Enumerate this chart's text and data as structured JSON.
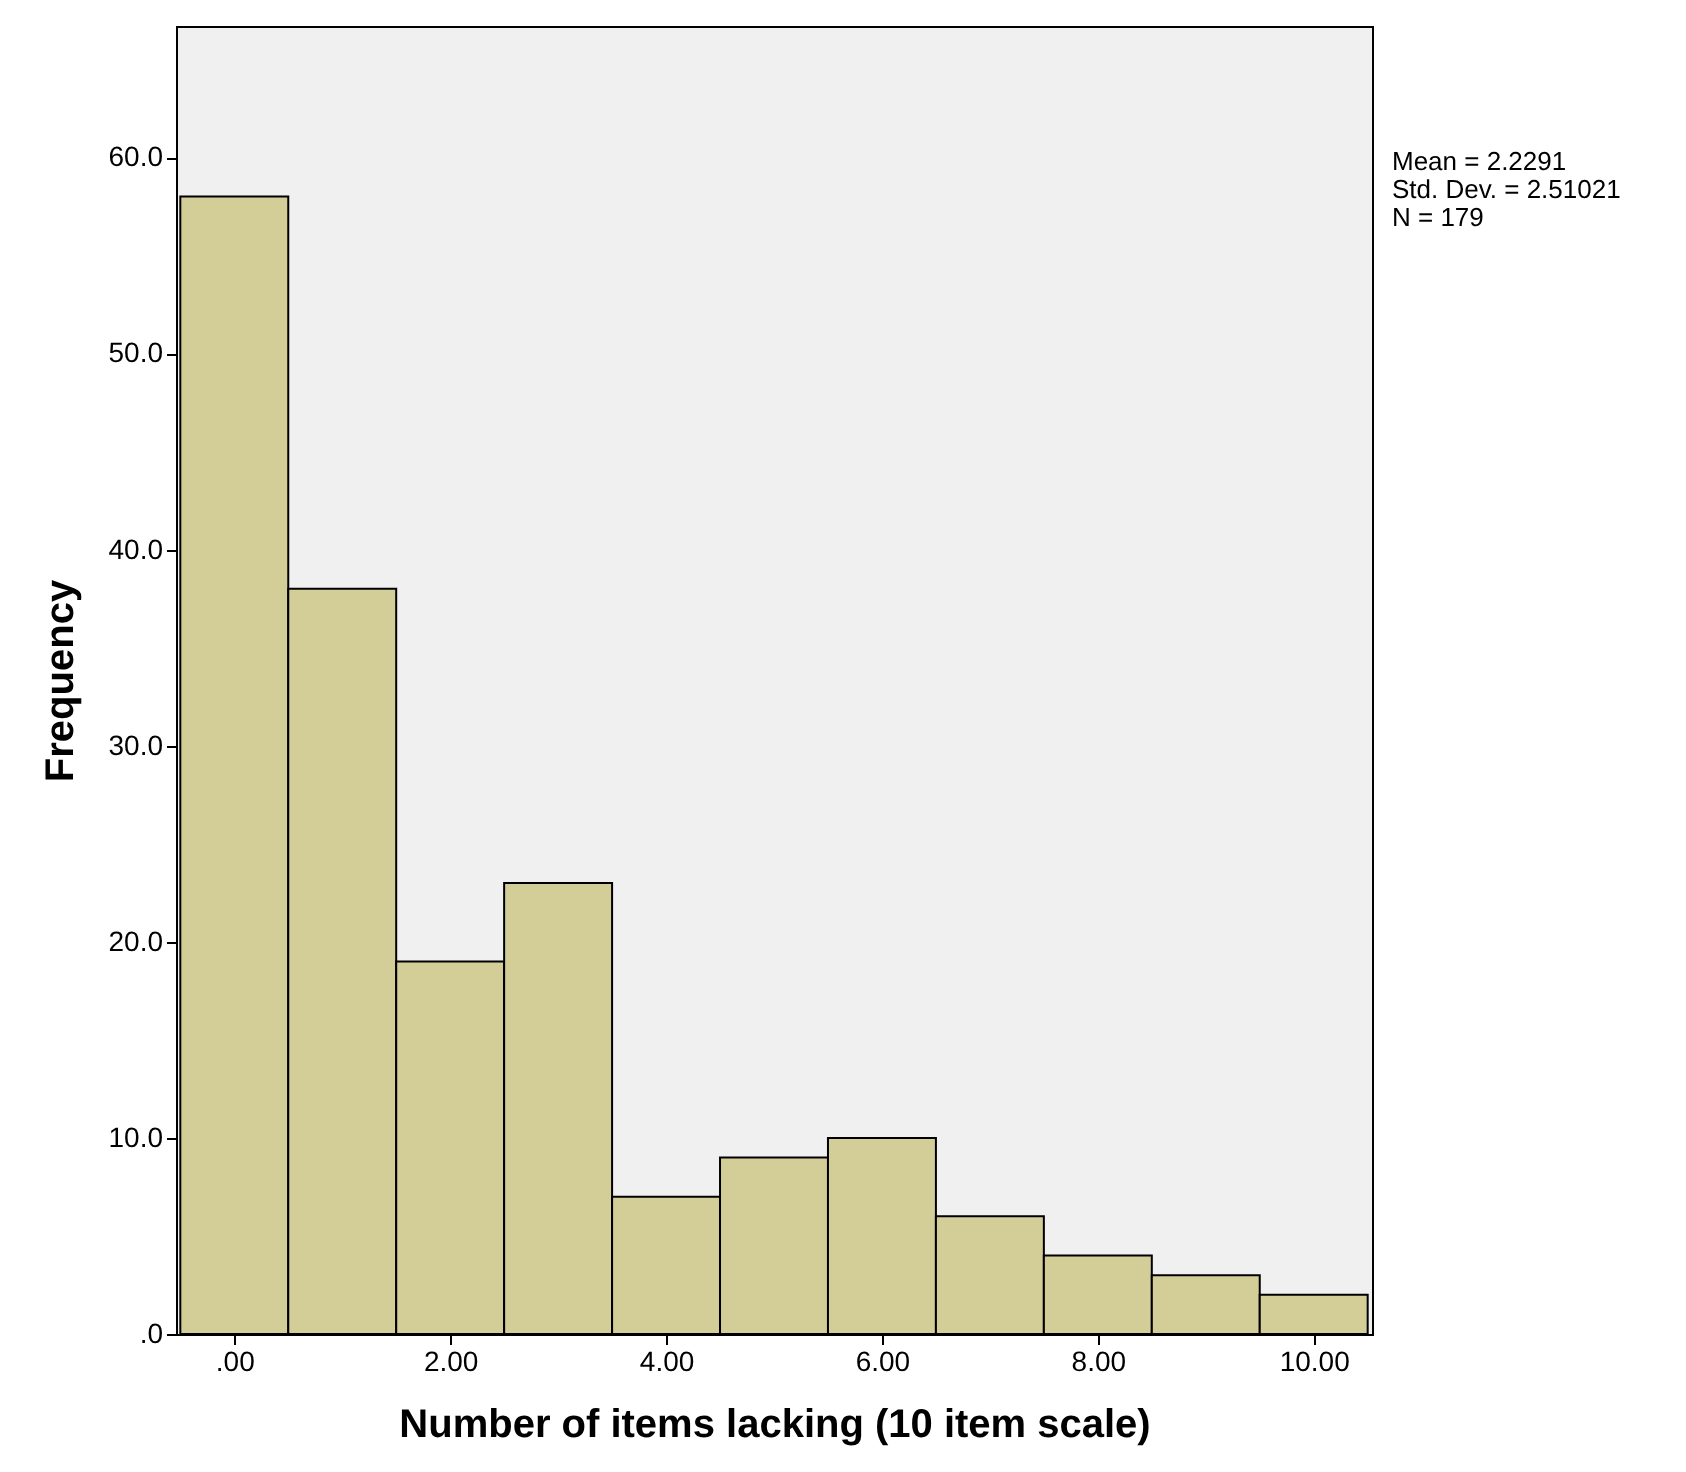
{
  "chart_data": {
    "type": "histogram",
    "xlabel": "Number of items lacking (10 item scale)",
    "ylabel": "Frequency",
    "bins": [
      -0.5,
      0.5,
      1.5,
      2.5,
      3.5,
      4.5,
      5.5,
      6.5,
      7.5,
      8.5,
      9.5,
      10.5
    ],
    "values": [
      58,
      38,
      19,
      23,
      7,
      9,
      10,
      6,
      4,
      3,
      2
    ],
    "color": "#d3ce97",
    "xlim": [
      -0.54,
      10.54
    ],
    "ylim": [
      0,
      66.7
    ],
    "xticks": [
      {
        "value": 0,
        "label": ".00"
      },
      {
        "value": 2,
        "label": "2.00"
      },
      {
        "value": 4,
        "label": "4.00"
      },
      {
        "value": 6,
        "label": "6.00"
      },
      {
        "value": 8,
        "label": "8.00"
      },
      {
        "value": 10,
        "label": "10.00"
      }
    ],
    "yticks": [
      {
        "value": 0,
        "label": ".0"
      },
      {
        "value": 10,
        "label": "10.0"
      },
      {
        "value": 20,
        "label": "20.0"
      },
      {
        "value": 30,
        "label": "30.0"
      },
      {
        "value": 40,
        "label": "40.0"
      },
      {
        "value": 50,
        "label": "50.0"
      },
      {
        "value": 60,
        "label": "60.0"
      }
    ],
    "annotations": [
      "Mean = 2.2291",
      "Std. Dev. = 2.51021",
      "N = 179"
    ],
    "grid": false
  }
}
